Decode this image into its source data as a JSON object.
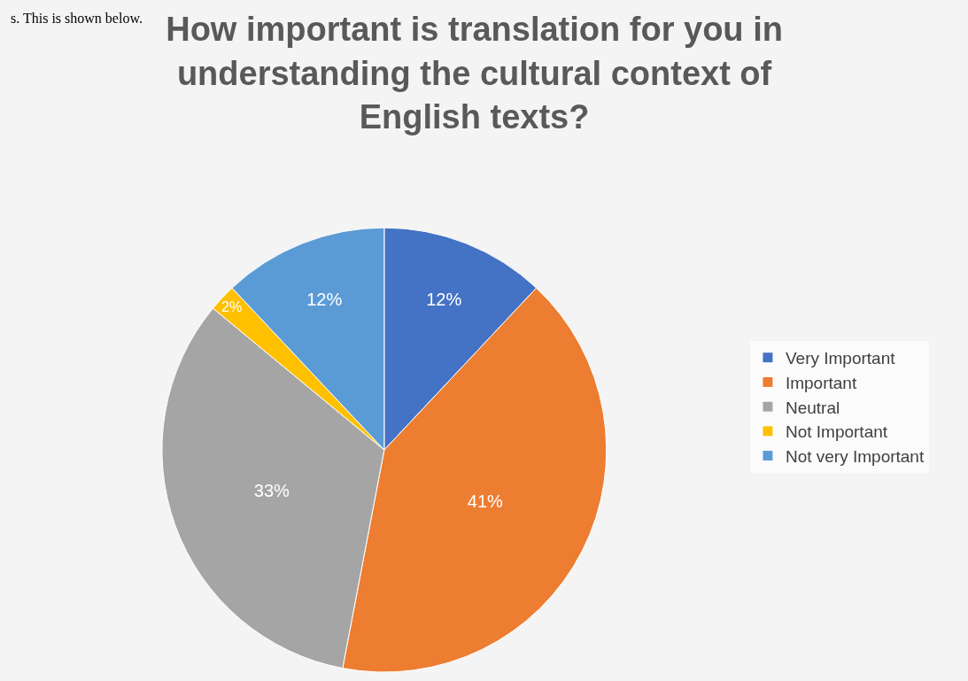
{
  "chart_data": {
    "type": "pie",
    "title": "How important is translation for you in understanding the cultural context of English texts?",
    "categories": [
      "Very Important",
      "Important",
      "Neutral",
      "Not Important",
      "Not very Important"
    ],
    "values": [
      12,
      41,
      33,
      2,
      12
    ],
    "colors": [
      "#4472c4",
      "#ed7d31",
      "#a5a5a5",
      "#ffc000",
      "#5b9bd5"
    ],
    "value_labels": [
      "12%",
      "41%",
      "33%",
      "2%",
      "12%"
    ],
    "legend": "right",
    "annotations": [
      "s. This is shown below."
    ]
  }
}
